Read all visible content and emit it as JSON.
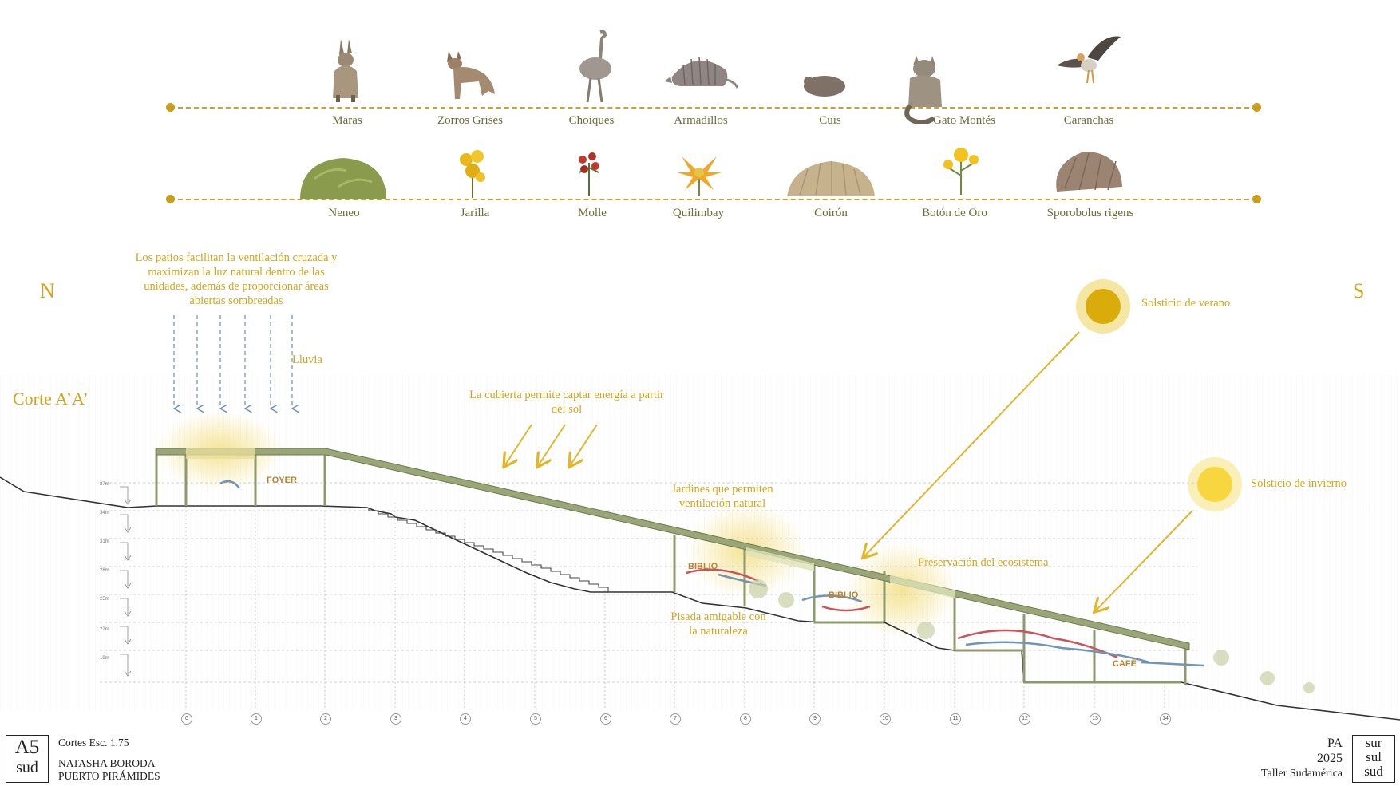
{
  "fauna": {
    "items": [
      {
        "label": "Maras",
        "icon": "mara-icon"
      },
      {
        "label": "Zorros Grises",
        "icon": "grey-fox-icon"
      },
      {
        "label": "Choiques",
        "icon": "rhea-icon"
      },
      {
        "label": "Armadillos",
        "icon": "armadillo-icon"
      },
      {
        "label": "Cuis",
        "icon": "cavy-icon"
      },
      {
        "label": "Gato Montés",
        "icon": "wildcat-icon"
      },
      {
        "label": "Caranchas",
        "icon": "caracara-icon"
      }
    ]
  },
  "flora": {
    "items": [
      {
        "label": "Neneo",
        "icon": "neneo-shrub-icon"
      },
      {
        "label": "Jarilla",
        "icon": "jarilla-flower-icon"
      },
      {
        "label": "Molle",
        "icon": "molle-berries-icon"
      },
      {
        "label": "Quilimbay",
        "icon": "quilimbay-flower-icon"
      },
      {
        "label": "Coirón",
        "icon": "coiron-grass-icon"
      },
      {
        "label": "Botón de Oro",
        "icon": "boton-de-oro-flower-icon"
      },
      {
        "label": "Sporobolus rigens",
        "icon": "sporobolus-grass-icon"
      }
    ]
  },
  "compass": {
    "north": "N",
    "south": "S"
  },
  "section": {
    "title": "Corte A’A’",
    "rain_label": "Lluvia",
    "patio_note": [
      "Los patios facilitan la ventilación cruzada y",
      "maximizan la luz natural dentro de las",
      "unidades, además de proporcionar áreas",
      "abiertas sombreadas"
    ],
    "roof_note": [
      "La cubierta permite captar energía a partir",
      "del sol"
    ],
    "garden_note": [
      "Jardines que permiten",
      "ventilación natural"
    ],
    "footprint_note": [
      "Pisada amigable con",
      "la naturaleza"
    ],
    "ecosystem_note": "Preservación del ecosistema",
    "summer_solstice": "Solsticio de verano",
    "winter_solstice": "Solsticio de invierno",
    "rooms": [
      "FOYER",
      "BIBLIO",
      "BIBLIO",
      "CAFÉ"
    ],
    "axes": [
      "0",
      "1",
      "2",
      "3",
      "4",
      "5",
      "6",
      "7",
      "8",
      "9",
      "10",
      "11",
      "12",
      "13",
      "14"
    ],
    "levels": [
      "37m",
      "34m",
      "31m",
      "28m",
      "25m",
      "22m",
      "19m"
    ]
  },
  "footer": {
    "sheet_code": "A5",
    "sheet_sub": "sud",
    "subtitle": "Cortes  Esc. 1.75",
    "author": "NATASHA BORODA",
    "location": "PUERTO PIRÁMIDES",
    "project": "PA",
    "year": "2025",
    "studio": "Taller Sudamérica",
    "logo": [
      "sur",
      "sul",
      "sud"
    ]
  },
  "colors": {
    "accent": "#d4a51a",
    "roof": "#8e9a6c",
    "ground": "#333333",
    "airflow_warm": "#c9545a",
    "airflow_cool": "#6f95b9"
  }
}
